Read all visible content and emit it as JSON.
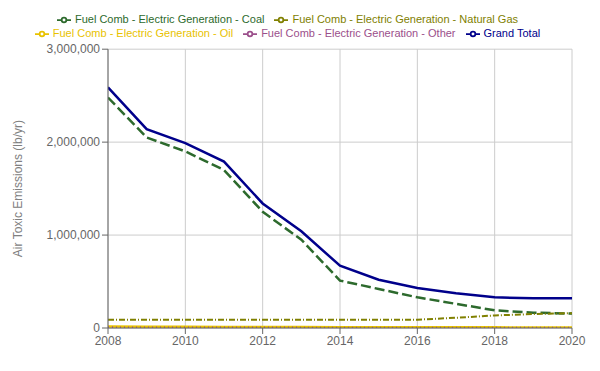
{
  "chart_data": {
    "type": "line",
    "ylabel": "Air Toxic Emissions (lb/yr)",
    "x": [
      2008,
      2009,
      2010,
      2011,
      2012,
      2013,
      2014,
      2015,
      2016,
      2017,
      2018,
      2019,
      2020
    ],
    "series": [
      {
        "name": "Fuel Comb - Electric Generation - Coal",
        "color": "#2d6a2d",
        "line_style": "dashed",
        "values": [
          2480000,
          2050000,
          1900000,
          1700000,
          1250000,
          950000,
          510000,
          420000,
          330000,
          260000,
          190000,
          165000,
          155000
        ]
      },
      {
        "name": "Fuel Comb - Electric Generation - Natural Gas",
        "color": "#808000",
        "line_style": "dashdot",
        "values": [
          90000,
          90000,
          90000,
          90000,
          90000,
          90000,
          90000,
          90000,
          90000,
          110000,
          135000,
          150000,
          160000
        ]
      },
      {
        "name": "Fuel Comb - Electric Generation - Oil",
        "color": "#e8c200",
        "line_style": "solid",
        "values": [
          15000,
          14000,
          13000,
          12000,
          11000,
          10000,
          9000,
          8000,
          8000,
          7000,
          7000,
          6000,
          6000
        ]
      },
      {
        "name": "Fuel Comb - Electric Generation - Other",
        "color": "#9b4f8b",
        "line_style": "dotted",
        "values": [
          8000,
          7000,
          7000,
          6000,
          6000,
          5000,
          5000,
          5000,
          4000,
          4000,
          4000,
          4000,
          4000
        ]
      },
      {
        "name": "Grand Total",
        "color": "#00008b",
        "line_style": "solid",
        "values": [
          2590000,
          2140000,
          1990000,
          1790000,
          1340000,
          1040000,
          670000,
          520000,
          430000,
          375000,
          330000,
          320000,
          320000
        ]
      }
    ],
    "xlim": [
      2008,
      2020
    ],
    "xticks": [
      2008,
      2010,
      2012,
      2014,
      2016,
      2018,
      2020
    ],
    "ylim": [
      0,
      3000000
    ],
    "yticks": [
      0,
      {
        "value": 1000000,
        "label": "1,000,000"
      },
      {
        "value": 2000000,
        "label": "2,000,000"
      },
      {
        "value": 3000000,
        "label": "3,000,000"
      }
    ],
    "grid": true,
    "legend": "top"
  }
}
